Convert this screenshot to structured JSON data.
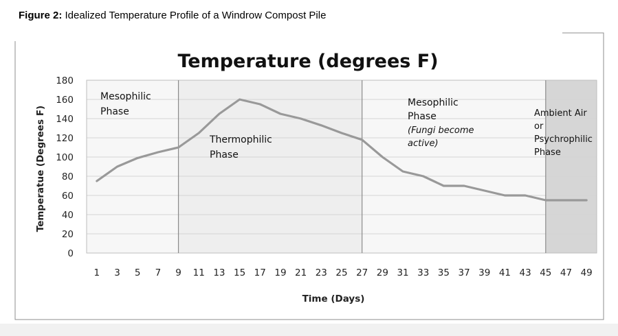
{
  "figure": {
    "caption_bold": "Figure 2:",
    "caption_text": " Idealized Temperature Profile of a Windrow Compost Pile"
  },
  "chart_data": {
    "type": "line",
    "title": "Temperature (degrees F)",
    "xlabel": "Time (Days)",
    "ylabel": "Temperatue (Degrees F)",
    "ylim": [
      0,
      180
    ],
    "yticks": [
      "0",
      "20",
      "40",
      "60",
      "80",
      "100",
      "120",
      "140",
      "160",
      "180"
    ],
    "xticks": [
      "1",
      "3",
      "5",
      "7",
      "9",
      "11",
      "13",
      "15",
      "17",
      "19",
      "21",
      "23",
      "25",
      "27",
      "29",
      "31",
      "33",
      "35",
      "37",
      "39",
      "41",
      "43",
      "45",
      "47",
      "49"
    ],
    "grid": true,
    "line_color": "#999999",
    "x": [
      1,
      3,
      5,
      7,
      9,
      11,
      13,
      15,
      17,
      19,
      21,
      23,
      25,
      27,
      29,
      31,
      33,
      35,
      37,
      39,
      41,
      43,
      45,
      47,
      49
    ],
    "values": [
      75,
      90,
      99,
      105,
      110,
      125,
      145,
      160,
      155,
      145,
      140,
      133,
      125,
      118,
      100,
      85,
      80,
      70,
      70,
      65,
      60,
      60,
      55,
      55,
      55
    ],
    "phases": [
      {
        "start": 0,
        "end": 9,
        "color": "#f7f7f7",
        "lines": [
          "Mesophilic",
          "Phase"
        ]
      },
      {
        "start": 9,
        "end": 27,
        "color": "#eeeeee",
        "lines": [
          "Thermophilic",
          "Phase"
        ]
      },
      {
        "start": 27,
        "end": 45,
        "color": "#f7f7f7",
        "lines": [
          "Mesophilic",
          "Phase",
          "(Fungi become",
          "active)"
        ]
      },
      {
        "start": 45,
        "end": 50,
        "color": "#d6d6d6",
        "lines": [
          "Ambient Air",
          "or",
          "Psychrophilic",
          "Phase"
        ]
      }
    ]
  }
}
